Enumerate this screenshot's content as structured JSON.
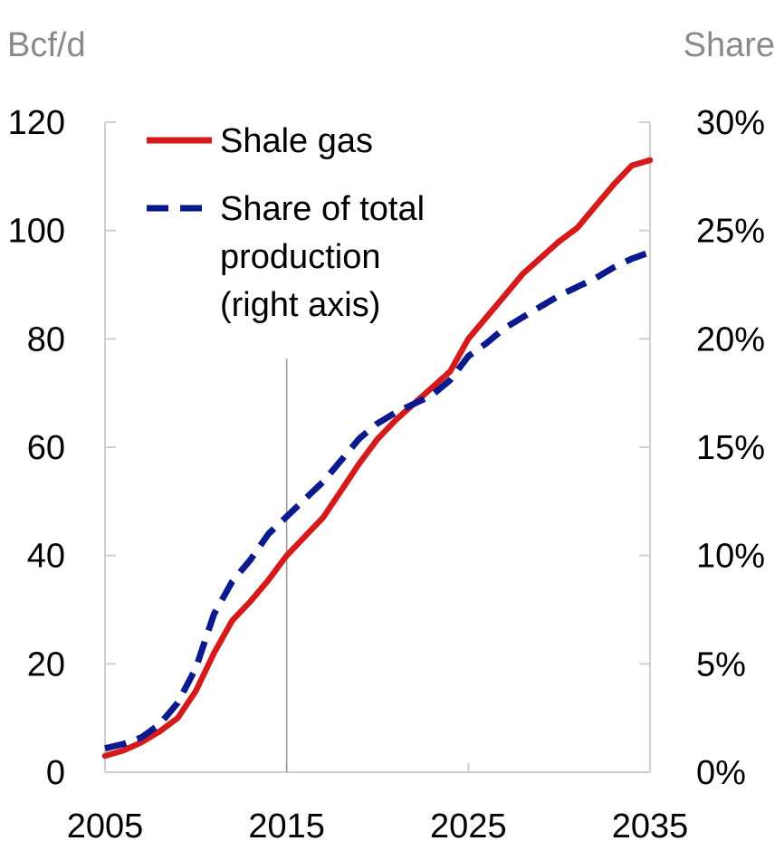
{
  "chart_data": {
    "type": "line",
    "left_axis_unit": "Bcf/d",
    "right_axis_unit": "Share",
    "x": [
      2005,
      2006,
      2007,
      2008,
      2009,
      2010,
      2011,
      2012,
      2013,
      2014,
      2015,
      2016,
      2017,
      2018,
      2019,
      2020,
      2021,
      2022,
      2023,
      2024,
      2025,
      2026,
      2027,
      2028,
      2029,
      2030,
      2031,
      2032,
      2033,
      2034,
      2035
    ],
    "xticks": [
      2005,
      2015,
      2025,
      2035
    ],
    "xtick_labels": [
      "2005",
      "2015",
      "2025",
      "2035"
    ],
    "xlim": [
      2005,
      2035
    ],
    "ylim_left": [
      0,
      120
    ],
    "yticks_left": [
      0,
      20,
      40,
      60,
      80,
      100,
      120
    ],
    "ytick_labels_left": [
      "0",
      "20",
      "40",
      "60",
      "80",
      "100",
      "120"
    ],
    "ylim_right": [
      0,
      30
    ],
    "yticks_right": [
      0,
      5,
      10,
      15,
      20,
      25,
      30
    ],
    "ytick_labels_right": [
      "0%",
      "5%",
      "10%",
      "15%",
      "20%",
      "25%",
      "30%"
    ],
    "marker_year": 2015,
    "legend_position": "top-left",
    "series": [
      {
        "name": "Shale gas",
        "legend_lines": [
          "Shale gas"
        ],
        "axis": "left",
        "style": "solid",
        "color": "#d41a1a",
        "values": [
          3,
          4,
          5.5,
          7.5,
          10,
          15,
          22,
          28,
          31.5,
          35.5,
          40,
          43.5,
          47,
          52,
          57,
          61.5,
          65,
          68,
          71,
          74,
          80,
          84,
          88,
          92,
          95,
          98,
          100.5,
          104.5,
          108.5,
          112,
          113
        ]
      },
      {
        "name": "Share of total production (right axis)",
        "legend_lines": [
          "Share of total",
          "production",
          "(right axis)"
        ],
        "axis": "right",
        "style": "dashed",
        "color": "#0a1a8c",
        "values": [
          1.1,
          1.3,
          1.6,
          2.2,
          3.2,
          4.8,
          7.3,
          8.8,
          9.8,
          11.0,
          11.8,
          12.6,
          13.4,
          14.4,
          15.4,
          16.1,
          16.6,
          17.0,
          17.4,
          18.1,
          19.2,
          19.8,
          20.5,
          21.0,
          21.5,
          22.0,
          22.4,
          22.8,
          23.3,
          23.7,
          24.0
        ]
      }
    ]
  }
}
